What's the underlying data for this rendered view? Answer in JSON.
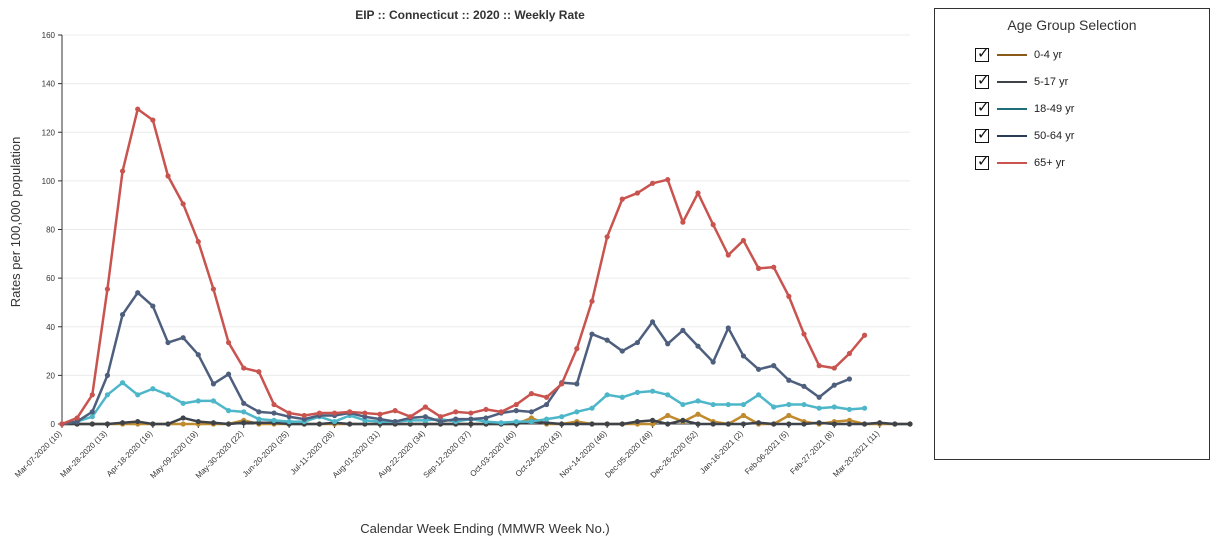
{
  "chart_data": {
    "type": "line",
    "title": "EIP :: Connecticut :: 2020 :: Weekly Rate",
    "xlabel": "Calendar Week Ending (MMWR Week No.)",
    "ylabel": "Rates per 100,000 population",
    "ylim": [
      0,
      160
    ],
    "yticks": [
      0,
      20,
      40,
      60,
      80,
      100,
      120,
      140,
      160
    ],
    "grid": true,
    "x_tick_labels": [
      "Mar-07-2020 (10)",
      "Mar-28-2020 (13)",
      "Apr-18-2020 (16)",
      "May-09-2020 (19)",
      "May-30-2020 (22)",
      "Jun-20-2020 (25)",
      "Jul-11-2020 (28)",
      "Aug-01-2020 (31)",
      "Aug-22-2020 (34)",
      "Sep-12-2020 (37)",
      "Oct-03-2020 (40)",
      "Oct-24-2020 (43)",
      "Nov-14-2020 (46)",
      "Dec-05-2020 (49)",
      "Dec-26-2020 (52)",
      "Jan-16-2021 (2)",
      "Feb-06-2021 (5)",
      "Feb-27-2021 (8)",
      "Mar-20-2021 (11)"
    ],
    "x_tick_every": 3,
    "series": [
      {
        "name": "0-4 yr",
        "color": "#c08a2e",
        "values": [
          0,
          0,
          0,
          0,
          0,
          0,
          0,
          0,
          0,
          0,
          0,
          0,
          1.5,
          0,
          0,
          0,
          0,
          0,
          0,
          0,
          0,
          0,
          0,
          0,
          0,
          0,
          0,
          0,
          0,
          0,
          0,
          2.5,
          0,
          0,
          1,
          0,
          0,
          0,
          0,
          0,
          3.5,
          1,
          4,
          1,
          0,
          3.5,
          0,
          0,
          3.5,
          1,
          0,
          1,
          1.5,
          0,
          0,
          0,
          0
        ]
      },
      {
        "name": "5-17 yr",
        "color": "#3e4349",
        "values": [
          0,
          0,
          0,
          0,
          0.5,
          1,
          0,
          0,
          2.5,
          1,
          0.5,
          0,
          0.5,
          0.5,
          0.5,
          0,
          0,
          0,
          0.5,
          0,
          0,
          0,
          0,
          0,
          0,
          0,
          0,
          0,
          0,
          0,
          0,
          1,
          0.5,
          0,
          0,
          0,
          0,
          0,
          1,
          1.5,
          0,
          1.5,
          0,
          0,
          0,
          0,
          0.5,
          0,
          0,
          0,
          0.5,
          0,
          0,
          0,
          0.5,
          0,
          0
        ]
      },
      {
        "name": "18-49 yr",
        "color": "#4db6c9",
        "values": [
          0,
          1,
          3,
          12,
          17,
          12,
          14.5,
          12,
          8.5,
          9.5,
          9.5,
          5.5,
          5,
          2,
          1.5,
          1,
          1,
          3,
          1,
          3.5,
          1.5,
          1,
          1,
          1.5,
          1.5,
          2,
          1,
          2,
          1,
          0.5,
          1,
          1,
          2,
          3,
          5,
          6.5,
          12,
          11,
          13,
          13.5,
          12,
          8,
          9.5,
          8,
          8,
          8,
          12,
          7,
          8,
          8,
          6.5,
          7,
          6,
          6.5,
          null,
          null,
          null
        ]
      },
      {
        "name": "50-64 yr",
        "color": "#4e5f7d",
        "values": [
          0,
          1,
          5,
          20,
          45,
          54,
          48.5,
          33.5,
          35.5,
          28.5,
          16.5,
          20.5,
          8.5,
          5,
          4.5,
          3,
          2,
          3.5,
          3.5,
          4.5,
          3,
          2,
          1,
          2.5,
          3,
          1,
          2,
          2,
          2.5,
          4.5,
          5.5,
          5,
          8,
          17,
          16.5,
          37,
          34.5,
          30,
          33.5,
          42,
          33,
          38.5,
          32,
          25.5,
          39.5,
          28,
          22.5,
          24,
          18,
          15.5,
          11,
          16,
          18.5,
          null,
          null,
          null,
          null
        ]
      },
      {
        "name": "65+ yr",
        "color": "#c9544f",
        "values": [
          0,
          2.5,
          12,
          55.5,
          104,
          129.5,
          125,
          102,
          90.5,
          75,
          55.5,
          33.5,
          23,
          21.5,
          8,
          4.5,
          3.5,
          4.5,
          4.5,
          5,
          4.5,
          4,
          5.5,
          3,
          7,
          3,
          5,
          4.5,
          6,
          5,
          8,
          12.5,
          11,
          16.5,
          31,
          50.5,
          77,
          92.5,
          95,
          99,
          100.5,
          83,
          95,
          82,
          69.5,
          75.5,
          64,
          64.5,
          52.5,
          37,
          24,
          23,
          29,
          36.5,
          null,
          null,
          null
        ]
      }
    ]
  },
  "legend": {
    "title": "Age Group Selection",
    "items": [
      {
        "label": "0-4 yr",
        "color": "#8a5a1a"
      },
      {
        "label": "5-17 yr",
        "color": "#3e4349"
      },
      {
        "label": "18-49 yr",
        "color": "#1f6e7a"
      },
      {
        "label": "50-64 yr",
        "color": "#2b3a55"
      },
      {
        "label": "65+ yr",
        "color": "#c9544f"
      }
    ]
  }
}
